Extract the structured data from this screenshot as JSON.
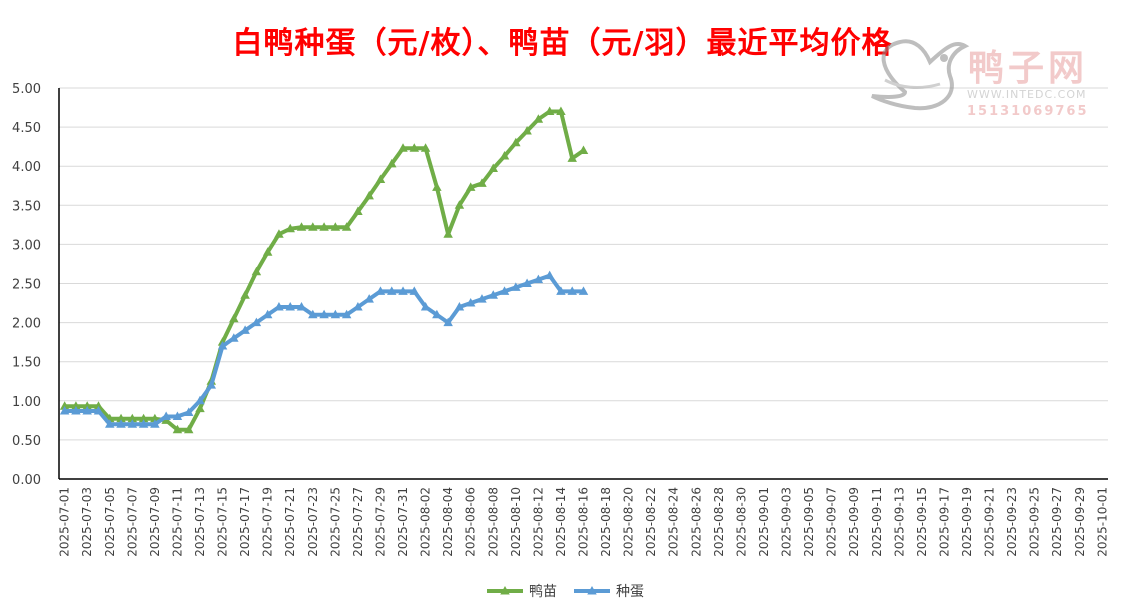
{
  "title": "白鸭种蛋（元/枚）、鸭苗（元/羽）最近平均价格",
  "watermark": {
    "brand": "鸭子网",
    "url": "WWW.INTEDC.COM",
    "phone": "15131069765"
  },
  "chart_data": {
    "type": "line",
    "ylim": [
      0,
      5
    ],
    "y_ticks": [
      "0.00",
      "0.50",
      "1.00",
      "1.50",
      "2.00",
      "2.50",
      "3.00",
      "3.50",
      "4.00",
      "4.50",
      "5.00"
    ],
    "x_tick_labels": [
      "2025-07-01",
      "2025-07-03",
      "2025-07-05",
      "2025-07-07",
      "2025-07-09",
      "2025-07-11",
      "2025-07-13",
      "2025-07-15",
      "2025-07-17",
      "2025-07-19",
      "2025-07-21",
      "2025-07-23",
      "2025-07-25",
      "2025-07-27",
      "2025-07-29",
      "2025-07-31",
      "2025-08-02",
      "2025-08-04",
      "2025-08-06",
      "2025-08-08",
      "2025-08-10",
      "2025-08-12",
      "2025-08-14",
      "2025-08-16",
      "2025-08-18",
      "2025-08-20",
      "2025-08-22",
      "2025-08-24",
      "2025-08-26",
      "2025-08-28",
      "2025-08-30",
      "2025-09-01",
      "2025-09-03",
      "2025-09-05",
      "2025-09-07",
      "2025-09-09",
      "2025-09-11",
      "2025-09-13",
      "2025-09-15",
      "2025-09-17",
      "2025-09-19",
      "2025-09-21",
      "2025-09-23",
      "2025-09-25",
      "2025-09-27",
      "2025-09-29",
      "2025-10-01"
    ],
    "x_start": "2025-07-01",
    "x_end": "2025-10-01",
    "legend_position": "bottom",
    "grid": true,
    "series": [
      {
        "name": "鸭苗",
        "color": "#70ad47",
        "x": [
          "2025-07-01",
          "2025-07-02",
          "2025-07-03",
          "2025-07-04",
          "2025-07-05",
          "2025-07-06",
          "2025-07-07",
          "2025-07-08",
          "2025-07-09",
          "2025-07-10",
          "2025-07-11",
          "2025-07-12",
          "2025-07-13",
          "2025-07-14",
          "2025-07-15",
          "2025-07-16",
          "2025-07-17",
          "2025-07-18",
          "2025-07-19",
          "2025-07-20",
          "2025-07-21",
          "2025-07-22",
          "2025-07-23",
          "2025-07-24",
          "2025-07-25",
          "2025-07-26",
          "2025-07-27",
          "2025-07-28",
          "2025-07-29",
          "2025-07-30",
          "2025-07-31",
          "2025-08-01",
          "2025-08-02",
          "2025-08-03",
          "2025-08-04",
          "2025-08-05",
          "2025-08-06",
          "2025-08-07",
          "2025-08-08",
          "2025-08-09",
          "2025-08-10",
          "2025-08-11",
          "2025-08-12",
          "2025-08-13",
          "2025-08-14",
          "2025-08-15",
          "2025-08-16"
        ],
        "values": [
          0.93,
          0.93,
          0.93,
          0.93,
          0.77,
          0.77,
          0.77,
          0.77,
          0.77,
          0.75,
          0.63,
          0.63,
          0.9,
          1.25,
          1.75,
          2.05,
          2.35,
          2.65,
          2.9,
          3.13,
          3.2,
          3.22,
          3.22,
          3.22,
          3.22,
          3.22,
          3.42,
          3.62,
          3.83,
          4.03,
          4.23,
          4.23,
          4.23,
          3.73,
          3.13,
          3.5,
          3.73,
          3.78,
          3.97,
          4.13,
          4.3,
          4.45,
          4.6,
          4.7,
          4.7,
          4.1,
          4.2
        ]
      },
      {
        "name": "种蛋",
        "color": "#5b9bd5",
        "x": [
          "2025-07-01",
          "2025-07-02",
          "2025-07-03",
          "2025-07-04",
          "2025-07-05",
          "2025-07-06",
          "2025-07-07",
          "2025-07-08",
          "2025-07-09",
          "2025-07-10",
          "2025-07-11",
          "2025-07-12",
          "2025-07-13",
          "2025-07-14",
          "2025-07-15",
          "2025-07-16",
          "2025-07-17",
          "2025-07-18",
          "2025-07-19",
          "2025-07-20",
          "2025-07-21",
          "2025-07-22",
          "2025-07-23",
          "2025-07-24",
          "2025-07-25",
          "2025-07-26",
          "2025-07-27",
          "2025-07-28",
          "2025-07-29",
          "2025-07-30",
          "2025-07-31",
          "2025-08-01",
          "2025-08-02",
          "2025-08-03",
          "2025-08-04",
          "2025-08-05",
          "2025-08-06",
          "2025-08-07",
          "2025-08-08",
          "2025-08-09",
          "2025-08-10",
          "2025-08-11",
          "2025-08-12",
          "2025-08-13",
          "2025-08-14",
          "2025-08-15",
          "2025-08-16"
        ],
        "values": [
          0.87,
          0.87,
          0.87,
          0.87,
          0.7,
          0.7,
          0.7,
          0.7,
          0.7,
          0.8,
          0.8,
          0.85,
          1.0,
          1.2,
          1.7,
          1.8,
          1.9,
          2.0,
          2.1,
          2.2,
          2.2,
          2.2,
          2.1,
          2.1,
          2.1,
          2.1,
          2.2,
          2.3,
          2.4,
          2.4,
          2.4,
          2.4,
          2.2,
          2.1,
          2.0,
          2.2,
          2.25,
          2.3,
          2.35,
          2.4,
          2.45,
          2.5,
          2.55,
          2.6,
          2.4,
          2.4,
          2.4
        ]
      }
    ]
  }
}
